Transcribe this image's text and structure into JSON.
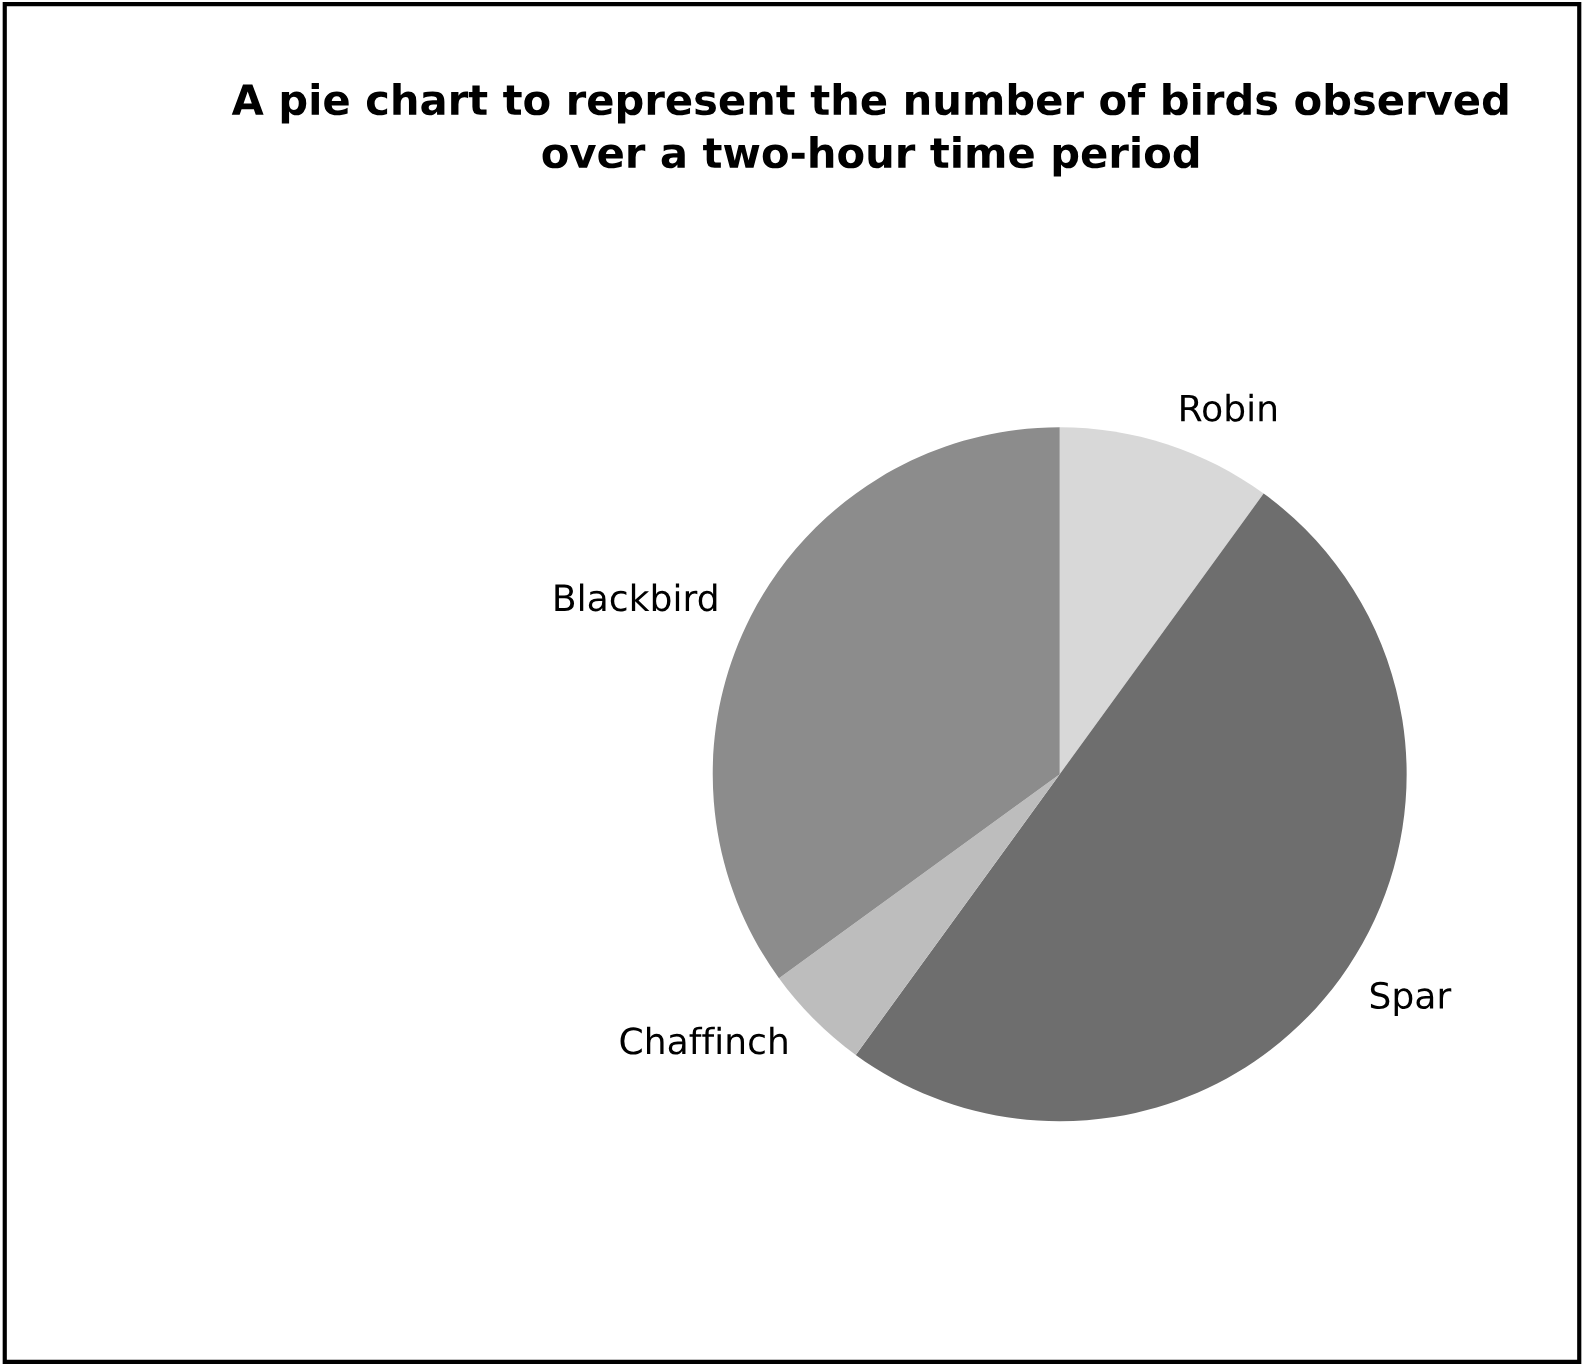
{
  "chart_data": {
    "type": "pie",
    "title": "A pie chart to represent the number of birds observed\nover a two-hour time period",
    "categories": [
      "Robin",
      "Spar",
      "Chaffinch",
      "Blackbird"
    ],
    "values": [
      10,
      50,
      5,
      35
    ],
    "colors": [
      "#d8d8d8",
      "#6e6e6e",
      "#bdbdbd",
      "#8c8c8c"
    ]
  }
}
